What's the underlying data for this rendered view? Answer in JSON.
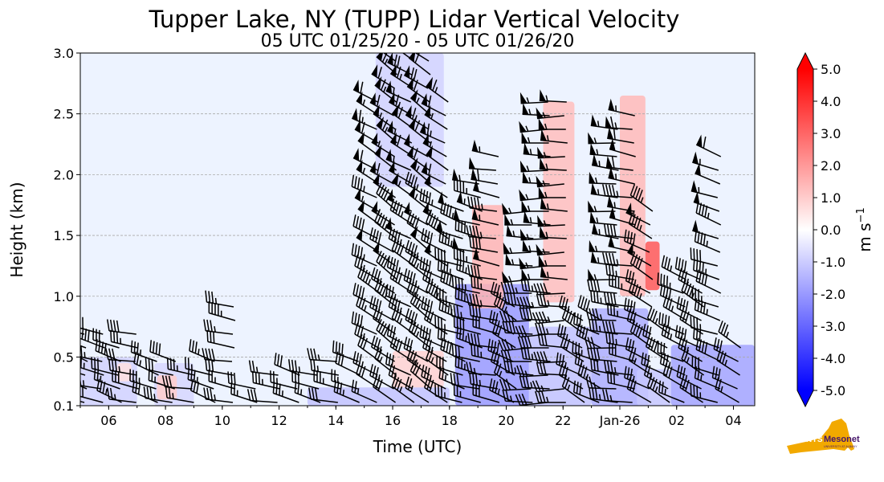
{
  "chart_data": {
    "type": "heatmap",
    "title": "Tupper Lake, NY (TUPP) Lidar Vertical Velocity",
    "subtitle": "05 UTC 01/25/20 - 05 UTC 01/26/20",
    "xlabel": "Time (UTC)",
    "ylabel": "Height (km)",
    "xlim_hours": [
      5.0,
      28.75
    ],
    "ylim_km": [
      0.1,
      3.0
    ],
    "grid": "horizontal dashed",
    "x_ticks": [
      {
        "hour": 6,
        "label": "06"
      },
      {
        "hour": 8,
        "label": "08"
      },
      {
        "hour": 10,
        "label": "10"
      },
      {
        "hour": 12,
        "label": "12"
      },
      {
        "hour": 14,
        "label": "14"
      },
      {
        "hour": 16,
        "label": "16"
      },
      {
        "hour": 18,
        "label": "18"
      },
      {
        "hour": 20,
        "label": "20"
      },
      {
        "hour": 22,
        "label": "22"
      },
      {
        "hour": 24,
        "label": "Jan-26"
      },
      {
        "hour": 26,
        "label": "02"
      },
      {
        "hour": 28,
        "label": "04"
      }
    ],
    "y_ticks": [
      {
        "value": 0.1,
        "label": "0.1"
      },
      {
        "value": 0.5,
        "label": "0.5"
      },
      {
        "value": 1.0,
        "label": "1.0"
      },
      {
        "value": 1.5,
        "label": "1.5"
      },
      {
        "value": 2.0,
        "label": "2.0"
      },
      {
        "value": 2.5,
        "label": "2.5"
      },
      {
        "value": 3.0,
        "label": "3.0"
      }
    ],
    "colorbar": {
      "label": "m s",
      "label_exponent": "−1",
      "range": [
        -5.0,
        5.0
      ],
      "ticks": [
        "-5.0",
        "-4.0",
        "-3.0",
        "-2.0",
        "-1.0",
        "0.0",
        "1.0",
        "2.0",
        "3.0",
        "4.0",
        "5.0"
      ],
      "colors": {
        "negative": "#0000ff",
        "zero": "#ffffff",
        "positive": "#ff0000"
      }
    },
    "background_velocity": -0.3,
    "velocity_regions": [
      {
        "t0": 18.2,
        "t1": 20.8,
        "h0": 0.1,
        "h1": 1.1,
        "v": -2.0
      },
      {
        "t0": 20.8,
        "t1": 23.0,
        "h0": 0.1,
        "h1": 0.75,
        "v": -1.2
      },
      {
        "t0": 23.0,
        "t1": 25.0,
        "h0": 0.1,
        "h1": 0.9,
        "v": -1.6
      },
      {
        "t0": 25.8,
        "t1": 28.75,
        "h0": 0.1,
        "h1": 0.6,
        "v": -1.8
      },
      {
        "t0": 15.4,
        "t1": 17.8,
        "h0": 1.9,
        "h1": 3.0,
        "v": -0.9
      },
      {
        "t0": 5.0,
        "t1": 7.0,
        "h0": 0.1,
        "h1": 0.5,
        "v": -0.9
      },
      {
        "t0": 7.6,
        "t1": 9.0,
        "h0": 0.1,
        "h1": 0.45,
        "v": -0.8
      },
      {
        "t0": 13.0,
        "t1": 18.0,
        "h0": 0.1,
        "h1": 0.25,
        "v": -1.2
      },
      {
        "t0": 24.6,
        "t1": 25.8,
        "h0": 0.1,
        "h1": 0.4,
        "v": -1.1
      },
      {
        "t0": 18.8,
        "t1": 19.9,
        "h0": 0.9,
        "h1": 1.75,
        "v": 1.5
      },
      {
        "t0": 21.3,
        "t1": 22.4,
        "h0": 0.95,
        "h1": 2.6,
        "v": 1.3
      },
      {
        "t0": 24.0,
        "t1": 24.9,
        "h0": 1.0,
        "h1": 2.65,
        "v": 1.4
      },
      {
        "t0": 24.9,
        "t1": 25.4,
        "h0": 1.05,
        "h1": 1.45,
        "v": 3.3
      },
      {
        "t0": 16.0,
        "t1": 17.8,
        "h0": 0.25,
        "h1": 0.55,
        "v": 0.9
      },
      {
        "t0": 7.7,
        "t1": 8.4,
        "h0": 0.15,
        "h1": 0.35,
        "v": 1.0
      },
      {
        "t0": 6.3,
        "t1": 6.8,
        "h0": 0.3,
        "h1": 0.45,
        "v": 0.6
      }
    ],
    "wind_barb_columns": [
      {
        "t": 5.2,
        "h_top": 0.75,
        "dir": 290
      },
      {
        "t": 5.8,
        "h_top": 0.7,
        "dir": 285
      },
      {
        "t": 6.4,
        "h_top": 0.6,
        "dir": 290
      },
      {
        "t": 7.0,
        "h_top": 0.7,
        "dir": 280
      },
      {
        "t": 7.7,
        "h_top": 0.5,
        "dir": 290
      },
      {
        "t": 8.3,
        "h_top": 0.5,
        "dir": 285
      },
      {
        "t": 9.0,
        "h_top": 0.45,
        "dir": 280
      },
      {
        "t": 9.7,
        "h_top": 0.55,
        "dir": 290
      },
      {
        "t": 10.4,
        "h_top": 0.95,
        "dir": 280
      },
      {
        "t": 11.2,
        "h_top": 0.35,
        "dir": 285
      },
      {
        "t": 12.0,
        "h_top": 0.4,
        "dir": 280
      },
      {
        "t": 12.7,
        "h_top": 0.4,
        "dir": 290
      },
      {
        "t": 13.4,
        "h_top": 0.45,
        "dir": 285
      },
      {
        "t": 14.1,
        "h_top": 0.5,
        "dir": 280
      },
      {
        "t": 14.8,
        "h_top": 0.55,
        "dir": 290
      },
      {
        "t": 15.5,
        "h_top": 2.65,
        "dir": 300
      },
      {
        "t": 16.1,
        "h_top": 2.95,
        "dir": 305
      },
      {
        "t": 16.7,
        "h_top": 2.95,
        "dir": 300
      },
      {
        "t": 17.3,
        "h_top": 2.95,
        "dir": 305
      },
      {
        "t": 17.9,
        "h_top": 2.7,
        "dir": 300
      },
      {
        "t": 18.5,
        "h_top": 1.8,
        "dir": 290
      },
      {
        "t": 19.1,
        "h_top": 2.0,
        "dir": 285
      },
      {
        "t": 19.7,
        "h_top": 2.15,
        "dir": 280
      },
      {
        "t": 20.3,
        "h_top": 0.95,
        "dir": 300
      },
      {
        "t": 20.9,
        "h_top": 1.75,
        "dir": 270
      },
      {
        "t": 21.5,
        "h_top": 2.6,
        "dir": 270
      },
      {
        "t": 22.1,
        "h_top": 2.7,
        "dir": 270
      },
      {
        "t": 22.7,
        "h_top": 0.85,
        "dir": 300
      },
      {
        "t": 23.3,
        "h_top": 0.9,
        "dir": 295
      },
      {
        "t": 23.9,
        "h_top": 2.45,
        "dir": 275
      },
      {
        "t": 24.5,
        "h_top": 2.5,
        "dir": 280
      },
      {
        "t": 25.1,
        "h_top": 1.75,
        "dir": 300
      },
      {
        "t": 25.7,
        "h_top": 0.7,
        "dir": 300
      },
      {
        "t": 26.3,
        "h_top": 1.2,
        "dir": 295
      },
      {
        "t": 26.9,
        "h_top": 1.2,
        "dir": 300
      },
      {
        "t": 27.5,
        "h_top": 2.25,
        "dir": 290
      },
      {
        "t": 28.2,
        "h_top": 0.65,
        "dir": 300
      }
    ]
  },
  "logo": {
    "state_text": "NYS",
    "brand_text": "Mesonet",
    "sub_text": "UNIVERSITY AT ALBANY",
    "colors": {
      "state": "#f2a900",
      "brand": "#46166b"
    }
  }
}
